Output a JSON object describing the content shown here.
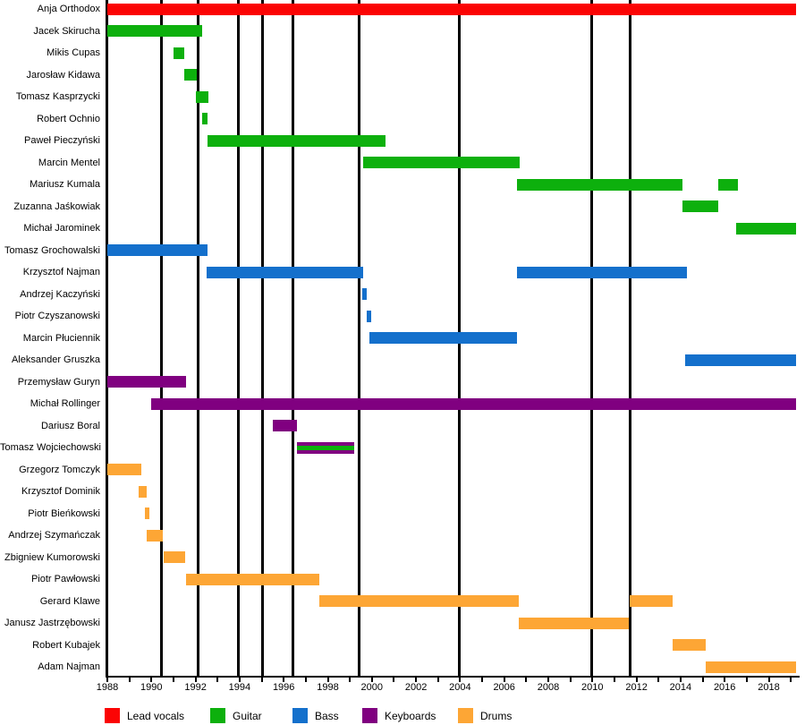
{
  "chart_data": {
    "type": "bar",
    "subtype": "timeline-gantt-band-members",
    "title": "",
    "xlabel": "",
    "ylabel": "",
    "x_axis": {
      "min": 1988,
      "max": 2019.35,
      "tick_every_years": 1,
      "label_every_years": 2,
      "labels": [
        "1988",
        "1990",
        "1992",
        "1994",
        "1996",
        "1998",
        "2000",
        "2002",
        "2004",
        "2006",
        "2008",
        "2010",
        "2012",
        "2014",
        "2016",
        "2018"
      ]
    },
    "milestone_lines_years": [
      1990.45,
      1992.1,
      1993.95,
      1995.05,
      1996.4,
      1999.4,
      2003.95,
      2009.95,
      2011.7
    ],
    "roles": {
      "lead_vocals": {
        "label": "Lead vocals",
        "color": "#fb0404"
      },
      "guitar": {
        "label": "Guitar",
        "color": "#0db00d"
      },
      "bass": {
        "label": "Bass",
        "color": "#1470cc"
      },
      "keyboards": {
        "label": "Keyboards",
        "color": "#800080"
      },
      "drums": {
        "label": "Drums",
        "color": "#fda635"
      }
    },
    "members": [
      {
        "name": "Anja Orthodox",
        "role": "lead_vocals",
        "segments": [
          [
            1988.0,
            2019.25
          ]
        ]
      },
      {
        "name": "Jacek Skirucha",
        "role": "guitar",
        "segments": [
          [
            1988.0,
            1992.3
          ]
        ]
      },
      {
        "name": "Mikis Cupas",
        "role": "guitar",
        "segments": [
          [
            1991.0,
            1991.5
          ]
        ]
      },
      {
        "name": "Jarosław Kidawa",
        "role": "guitar",
        "segments": [
          [
            1991.5,
            1992.05
          ]
        ]
      },
      {
        "name": "Tomasz Kasprzycki",
        "role": "guitar",
        "segments": [
          [
            1992.0,
            1992.6
          ]
        ]
      },
      {
        "name": "Robert Ochnio",
        "role": "guitar",
        "segments": [
          [
            1992.3,
            1992.55
          ]
        ]
      },
      {
        "name": "Paweł Pieczyński",
        "role": "guitar",
        "segments": [
          [
            1992.55,
            2000.6
          ]
        ]
      },
      {
        "name": "Marcin Mentel",
        "role": "guitar",
        "segments": [
          [
            1999.6,
            2006.7
          ]
        ]
      },
      {
        "name": "Mariusz Kumala",
        "role": "guitar",
        "segments": [
          [
            2006.6,
            2014.1
          ],
          [
            2015.7,
            2016.6
          ]
        ]
      },
      {
        "name": "Zuzanna Jaśkowiak",
        "role": "guitar",
        "segments": [
          [
            2014.1,
            2015.7
          ]
        ]
      },
      {
        "name": "Michał Jarominek",
        "role": "guitar",
        "segments": [
          [
            2016.5,
            2019.25
          ]
        ]
      },
      {
        "name": "Tomasz Grochowalski",
        "role": "bass",
        "segments": [
          [
            1988.0,
            1992.55
          ]
        ]
      },
      {
        "name": "Krzysztof Najman",
        "role": "bass",
        "segments": [
          [
            1992.5,
            1999.6
          ],
          [
            2006.6,
            2014.3
          ]
        ]
      },
      {
        "name": "Andrzej Kaczyński",
        "role": "bass",
        "segments": [
          [
            1999.55,
            1999.75
          ]
        ]
      },
      {
        "name": "Piotr Czyszanowski",
        "role": "bass",
        "segments": [
          [
            1999.75,
            1999.95
          ]
        ]
      },
      {
        "name": "Marcin Płuciennik",
        "role": "bass",
        "segments": [
          [
            1999.9,
            2006.6
          ]
        ]
      },
      {
        "name": "Aleksander Gruszka",
        "role": "bass",
        "segments": [
          [
            2014.2,
            2019.25
          ]
        ]
      },
      {
        "name": "Przemysław Guryn",
        "role": "keyboards",
        "segments": [
          [
            1988.0,
            1991.55
          ]
        ]
      },
      {
        "name": "Michał Rollinger",
        "role": "keyboards",
        "segments": [
          [
            1990.0,
            2019.25
          ]
        ]
      },
      {
        "name": "Dariusz Boral",
        "role": "keyboards",
        "segments": [
          [
            1995.5,
            1996.6
          ]
        ]
      },
      {
        "name": "Tomasz Wojciechowski",
        "role": "keyboards",
        "secondary_role": "guitar",
        "segments": [
          [
            1996.6,
            1999.2
          ]
        ]
      },
      {
        "name": "Grzegorz Tomczyk",
        "role": "drums",
        "segments": [
          [
            1988.0,
            1989.55
          ]
        ]
      },
      {
        "name": "Krzysztof Dominik",
        "role": "drums",
        "segments": [
          [
            1989.4,
            1989.8
          ]
        ]
      },
      {
        "name": "Piotr Bieńkowski",
        "role": "drums",
        "segments": [
          [
            1989.7,
            1989.9
          ]
        ]
      },
      {
        "name": "Andrzej Szymańczak",
        "role": "drums",
        "segments": [
          [
            1989.8,
            1990.5
          ]
        ]
      },
      {
        "name": "Zbigniew Kumorowski",
        "role": "drums",
        "segments": [
          [
            1990.55,
            1991.55
          ]
        ]
      },
      {
        "name": "Piotr Pawłowski",
        "role": "drums",
        "segments": [
          [
            1991.55,
            1997.6
          ]
        ]
      },
      {
        "name": "Gerard Klawe",
        "role": "drums",
        "segments": [
          [
            1997.6,
            2006.65
          ],
          [
            2011.7,
            2013.65
          ]
        ]
      },
      {
        "name": "Janusz Jastrzębowski",
        "role": "drums",
        "segments": [
          [
            2006.65,
            2011.65
          ]
        ]
      },
      {
        "name": "Robert Kubajek",
        "role": "drums",
        "segments": [
          [
            2013.65,
            2015.15
          ]
        ]
      },
      {
        "name": "Adam Najman",
        "role": "drums",
        "segments": [
          [
            2015.15,
            2019.25
          ]
        ]
      }
    ],
    "legend": [
      {
        "role": "lead_vocals",
        "label": "Lead vocals"
      },
      {
        "role": "guitar",
        "label": "Guitar"
      },
      {
        "role": "bass",
        "label": "Bass"
      },
      {
        "role": "keyboards",
        "label": "Keyboards"
      },
      {
        "role": "drums",
        "label": "Drums"
      }
    ],
    "legend_position": "bottom",
    "grid": "vertical-milestone-lines-only"
  }
}
